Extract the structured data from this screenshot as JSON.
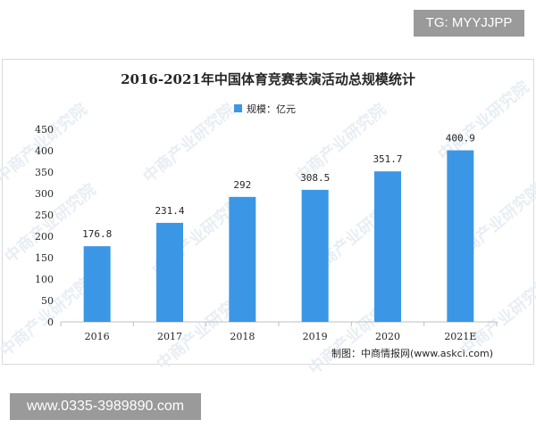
{
  "badges": {
    "top_right": "TG: MYYJJPP",
    "bottom_left": "www.0335-3989890.com"
  },
  "watermark": "中商产业研究院",
  "source_note": "制图：中商情报网(www.askci.com)",
  "chart_data": {
    "type": "bar",
    "title": "2016-2021年中国体育竞赛表演活动总规模统计",
    "legend": {
      "label": "规模：亿元",
      "placement": "top-center"
    },
    "categories": [
      "2016",
      "2017",
      "2018",
      "2019",
      "2020",
      "2021E"
    ],
    "values": [
      176.8,
      231.4,
      292,
      308.5,
      351.7,
      400.9
    ],
    "value_labels": [
      "176.8",
      "231.4",
      "292",
      "308.5",
      "351.7",
      "400.9"
    ],
    "ylim": [
      0,
      450
    ],
    "yticks": [
      "0",
      "50",
      "100",
      "150",
      "200",
      "250",
      "300",
      "350",
      "400",
      "450"
    ],
    "grid": false,
    "colors": {
      "bar": "#3b97e6",
      "axis": "#bfbfbf",
      "text": "#262626"
    }
  }
}
